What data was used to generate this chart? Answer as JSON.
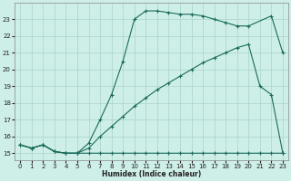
{
  "xlabel": "Humidex (Indice chaleur)",
  "bg_color": "#ceeee8",
  "grid_color": "#aad4cc",
  "line_color": "#1a6b5a",
  "xlim": [
    -0.5,
    23.5
  ],
  "ylim": [
    14.6,
    24.0
  ],
  "yticks": [
    15,
    16,
    17,
    18,
    19,
    20,
    21,
    22,
    23
  ],
  "xticks": [
    0,
    1,
    2,
    3,
    4,
    5,
    6,
    7,
    8,
    9,
    10,
    11,
    12,
    13,
    14,
    15,
    16,
    17,
    18,
    19,
    20,
    21,
    22,
    23
  ],
  "line1_x": [
    0,
    1,
    2,
    3,
    4,
    5,
    6,
    7,
    8,
    9,
    10,
    11,
    12,
    13,
    14,
    15,
    16,
    17,
    18,
    19,
    20,
    21,
    22,
    23
  ],
  "line1_y": [
    15.5,
    15.3,
    15.5,
    15.1,
    15.0,
    15.0,
    15.0,
    15.0,
    15.0,
    15.0,
    15.0,
    15.0,
    15.0,
    15.0,
    15.0,
    15.0,
    15.0,
    15.0,
    15.0,
    15.0,
    15.0,
    15.0,
    15.0,
    15.0
  ],
  "line2_x": [
    0,
    1,
    2,
    3,
    4,
    5,
    6,
    7,
    8,
    9,
    10,
    11,
    12,
    13,
    14,
    15,
    16,
    17,
    18,
    19,
    20,
    21,
    22,
    23
  ],
  "line2_y": [
    15.5,
    15.3,
    15.5,
    15.1,
    15.0,
    15.0,
    15.3,
    16.0,
    16.6,
    17.2,
    17.8,
    18.3,
    18.8,
    19.2,
    19.6,
    20.0,
    20.4,
    20.7,
    21.0,
    21.3,
    21.5,
    19.0,
    18.5,
    15.0
  ],
  "line3_x": [
    0,
    1,
    2,
    3,
    4,
    5,
    6,
    7,
    8,
    9,
    10,
    11,
    12,
    13,
    14,
    15,
    16,
    17,
    18,
    19,
    20,
    22,
    23
  ],
  "line3_y": [
    15.5,
    15.3,
    15.5,
    15.1,
    15.0,
    15.0,
    15.6,
    17.0,
    18.5,
    20.5,
    23.0,
    23.5,
    23.5,
    23.4,
    23.3,
    23.3,
    23.2,
    23.0,
    22.8,
    22.6,
    22.6,
    23.2,
    21.0
  ]
}
